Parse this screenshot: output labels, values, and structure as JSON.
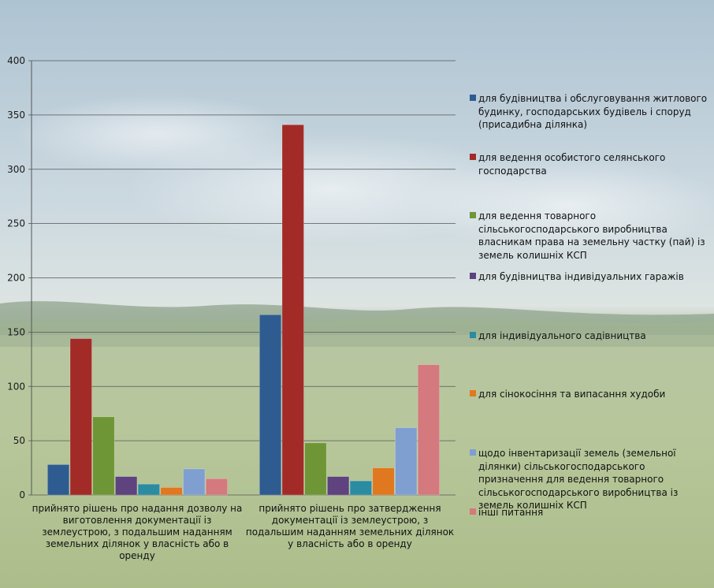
{
  "chart_data": {
    "type": "bar",
    "categories": [
      "прийнято рішень про надання дозволу на виготовлення документації із землеустрою, з подальшим наданням земельних ділянок у власність або в оренду",
      "прийнято рішень про затвердження документації із землеустрою, з подальшим наданням земельних ділянок у власність або в оренду"
    ],
    "series": [
      {
        "name": "для будівництва і обслуговування житлового будинку, господарських будівель і споруд (присадибна ділянка)",
        "color": "#2e5c91",
        "values": [
          28,
          166
        ]
      },
      {
        "name": "для ведення особистого селянського господарства",
        "color": "#a32b27",
        "values": [
          144,
          341
        ]
      },
      {
        "name": "для ведення товарного сільськогосподарського виробництва власникам права на земельну частку (пай) із земель колишніх КСП",
        "color": "#6f9636",
        "values": [
          72,
          48
        ]
      },
      {
        "name": "для будівництва індивідуальних гаражів",
        "color": "#5e437f",
        "values": [
          17,
          17
        ]
      },
      {
        "name": "для індивідуального садівництва",
        "color": "#2a8ba1",
        "values": [
          10,
          13
        ]
      },
      {
        "name": "для сінокосіння та випасання худоби",
        "color": "#e0781f",
        "values": [
          7,
          25
        ]
      },
      {
        "name": "щодо інвентаризації земель (земельної ділянки) сільськогосподарського призначення для ведення товарного сільськогосподарського виробництва із земель колишніх КСП",
        "color": "#7f9fd1",
        "values": [
          24,
          62
        ]
      },
      {
        "name": "інші питання",
        "color": "#d4797d",
        "values": [
          15,
          120
        ]
      }
    ],
    "ylim": [
      0,
      400
    ],
    "yticks": [
      "0",
      "50",
      "100",
      "150",
      "200",
      "250",
      "300",
      "350",
      "400"
    ],
    "grid": true,
    "legend": "right"
  }
}
